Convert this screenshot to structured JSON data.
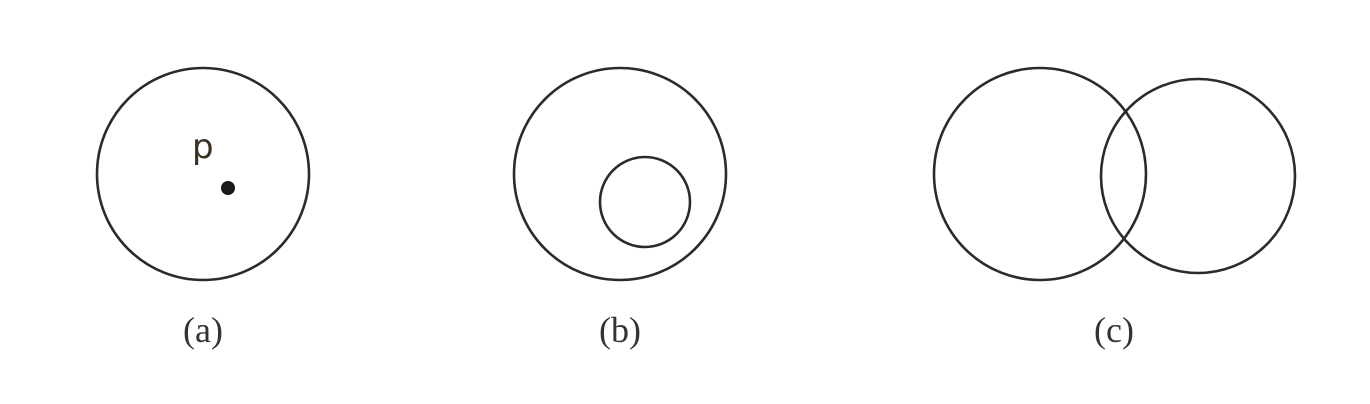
{
  "panels": {
    "a": {
      "caption": "(a)",
      "point_label": "p"
    },
    "b": {
      "caption": "(b)"
    },
    "c": {
      "caption": "(c)"
    }
  },
  "colors": {
    "stroke": "#2b2b2b",
    "text": "#333333",
    "background": "#ffffff"
  }
}
